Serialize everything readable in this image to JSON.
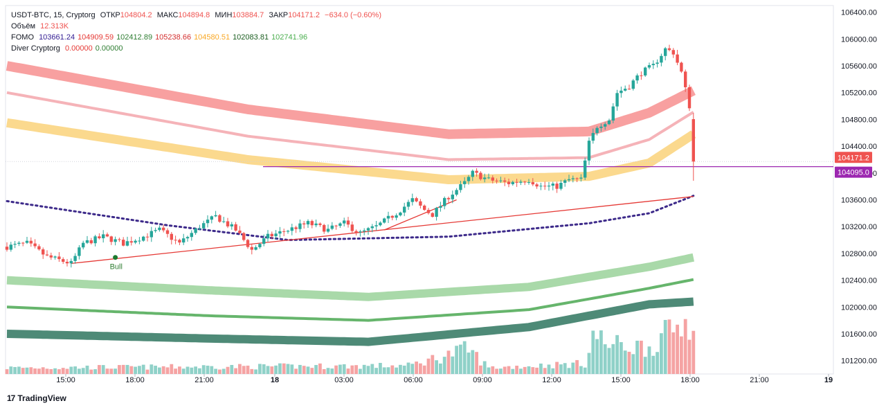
{
  "legend": {
    "symbol": "USDT-BTC, 15, Cryptorg",
    "open_label": "ОТКР",
    "open": "104804.2",
    "high_label": "МАКС",
    "high": "104894.8",
    "low_label": "МИН",
    "low": "103884.7",
    "close_label": "ЗАКР",
    "close": "104171.2",
    "change": "−634.0 (−0.60%)",
    "volume_label": "Объём",
    "volume": "12.313K",
    "fomo_label": "FOMO",
    "fomo_values": [
      "103661.24",
      "104909.59",
      "102412.89",
      "105238.66",
      "104580.51",
      "102083.81",
      "102741.96"
    ],
    "fomo_colors": [
      "#311b92",
      "#e53935",
      "#2e7d32",
      "#d32f2f",
      "#f9a825",
      "#1b5e20",
      "#4caf50"
    ],
    "diver_label": "Diver Cryptorg",
    "diver_values": [
      "0.00000",
      "0.00000"
    ],
    "diver_colors": [
      "#e53935",
      "#2e7d32"
    ]
  },
  "brand": "TradingView",
  "bull_label": "Bull",
  "colors": {
    "up": "#26a69a",
    "down": "#ef5350",
    "vol_up": "#8fd1c8",
    "vol_down": "#f5a3a3",
    "band_red": "#f8a0a0",
    "band_pink": "#f5b3b8",
    "band_yellow": "#fbd98e",
    "band_lightgreen": "#a9d9a9",
    "band_green": "#66b56c",
    "band_darkgreen": "#4e8a77",
    "dotted": "#3d2a8a",
    "trend": "#e53935",
    "level": "#9c27b0"
  },
  "chart_data": {
    "type": "candlestick",
    "ylim": [
      101000,
      106500
    ],
    "y_ticks": [
      101200,
      101600,
      102000,
      102400,
      102800,
      103200,
      103600,
      104000,
      104400,
      104800,
      105200,
      105600,
      106000,
      106400
    ],
    "x_ticks": [
      "15:00",
      "18:00",
      "21:00",
      "18",
      "03:00",
      "06:00",
      "09:00",
      "12:00",
      "15:00",
      "18:00",
      "21:00",
      "19"
    ],
    "price_labels": [
      {
        "value": 104171.2,
        "text": "104171.2",
        "color": "#ef5350"
      },
      {
        "value": 104095.0,
        "text": "104095.0",
        "color": "#9c27b0"
      }
    ],
    "level_line": 104095.0,
    "bull_signal": {
      "time": "16:45",
      "value": 102740
    },
    "anchors": [
      {
        "t": 0,
        "price": 102900
      },
      {
        "t": 5,
        "price": 102950
      },
      {
        "t": 10,
        "price": 102750
      },
      {
        "t": 16,
        "price": 102650
      },
      {
        "t": 19,
        "price": 102950
      },
      {
        "t": 24,
        "price": 103050
      },
      {
        "t": 29,
        "price": 102950
      },
      {
        "t": 34,
        "price": 103050
      },
      {
        "t": 38,
        "price": 103150
      },
      {
        "t": 43,
        "price": 102950
      },
      {
        "t": 48,
        "price": 103200
      },
      {
        "t": 52,
        "price": 103350
      },
      {
        "t": 57,
        "price": 103150
      },
      {
        "t": 61,
        "price": 102850
      },
      {
        "t": 65,
        "price": 103050
      },
      {
        "t": 70,
        "price": 103150
      },
      {
        "t": 75,
        "price": 103250
      },
      {
        "t": 80,
        "price": 103150
      },
      {
        "t": 84,
        "price": 103250
      },
      {
        "t": 88,
        "price": 103100
      },
      {
        "t": 92,
        "price": 103200
      },
      {
        "t": 97,
        "price": 103400
      },
      {
        "t": 101,
        "price": 103600
      },
      {
        "t": 104,
        "price": 103450
      },
      {
        "t": 106,
        "price": 103380
      },
      {
        "t": 110,
        "price": 103650
      },
      {
        "t": 114,
        "price": 103850
      },
      {
        "t": 116,
        "price": 104000
      },
      {
        "t": 120,
        "price": 103900
      },
      {
        "t": 125,
        "price": 103850
      },
      {
        "t": 130,
        "price": 103900
      },
      {
        "t": 133,
        "price": 103800
      },
      {
        "t": 137,
        "price": 103800
      },
      {
        "t": 140,
        "price": 103900
      },
      {
        "t": 143,
        "price": 103900
      },
      {
        "t": 145,
        "price": 104450
      },
      {
        "t": 147,
        "price": 104700
      },
      {
        "t": 150,
        "price": 104800
      },
      {
        "t": 152,
        "price": 105200
      },
      {
        "t": 155,
        "price": 105300
      },
      {
        "t": 158,
        "price": 105500
      },
      {
        "t": 161,
        "price": 105600
      },
      {
        "t": 164,
        "price": 105850
      },
      {
        "t": 166,
        "price": 105800
      },
      {
        "t": 168,
        "price": 105500
      },
      {
        "t": 170,
        "price": 105000
      },
      {
        "t": 171,
        "price": 104200
      }
    ],
    "volume_profile": [
      {
        "t": 0,
        "v": 0.3
      },
      {
        "t": 100,
        "v": 0.4
      },
      {
        "t": 115,
        "v": 1.2
      },
      {
        "t": 120,
        "v": 0.3
      },
      {
        "t": 144,
        "v": 0.5
      },
      {
        "t": 146,
        "v": 1.9
      },
      {
        "t": 150,
        "v": 1.4
      },
      {
        "t": 160,
        "v": 1.3
      },
      {
        "t": 170,
        "v": 2.7
      }
    ],
    "series": [
      {
        "name": "FOMO",
        "color": "#f8a0a0",
        "width": 14,
        "points": [
          [
            0,
            105600
          ],
          [
            60,
            104950
          ],
          [
            110,
            104580
          ],
          [
            145,
            104620
          ],
          [
            160,
            104900
          ],
          [
            171,
            105230
          ]
        ]
      },
      {
        "name": "FOMO",
        "color": "#f5b3b8",
        "width": 4,
        "points": [
          [
            0,
            105200
          ],
          [
            60,
            104550
          ],
          [
            110,
            104200
          ],
          [
            145,
            104230
          ],
          [
            160,
            104500
          ],
          [
            171,
            104910
          ]
        ]
      },
      {
        "name": "FOMO",
        "color": "#fbd98e",
        "width": 13,
        "points": [
          [
            0,
            104750
          ],
          [
            60,
            104200
          ],
          [
            110,
            103900
          ],
          [
            145,
            103950
          ],
          [
            160,
            104150
          ],
          [
            171,
            104580
          ]
        ]
      },
      {
        "name": "FOMO",
        "color": "#3d2a8a",
        "width": 3,
        "dotted": true,
        "points": [
          [
            0,
            103580
          ],
          [
            40,
            103220
          ],
          [
            70,
            103000
          ],
          [
            110,
            103050
          ],
          [
            145,
            103250
          ],
          [
            160,
            103400
          ],
          [
            171,
            103660
          ]
        ]
      },
      {
        "name": "FOMO",
        "color": "#a9d9a9",
        "width": 12,
        "points": [
          [
            0,
            102400
          ],
          [
            50,
            102250
          ],
          [
            90,
            102150
          ],
          [
            130,
            102300
          ],
          [
            160,
            102600
          ],
          [
            171,
            102740
          ]
        ]
      },
      {
        "name": "FOMO",
        "color": "#66b56c",
        "width": 4,
        "points": [
          [
            0,
            102000
          ],
          [
            50,
            101870
          ],
          [
            90,
            101800
          ],
          [
            130,
            101960
          ],
          [
            160,
            102280
          ],
          [
            171,
            102410
          ]
        ]
      },
      {
        "name": "FOMO",
        "color": "#4e8a77",
        "width": 12,
        "points": [
          [
            0,
            101600
          ],
          [
            50,
            101530
          ],
          [
            90,
            101480
          ],
          [
            130,
            101700
          ],
          [
            160,
            102040
          ],
          [
            171,
            102080
          ]
        ]
      }
    ],
    "trendlines": [
      {
        "from": [
          16,
          102650
        ],
        "to": [
          171,
          103650
        ]
      },
      {
        "from": [
          94,
          103150
        ],
        "to": [
          112,
          103600
        ]
      }
    ]
  }
}
